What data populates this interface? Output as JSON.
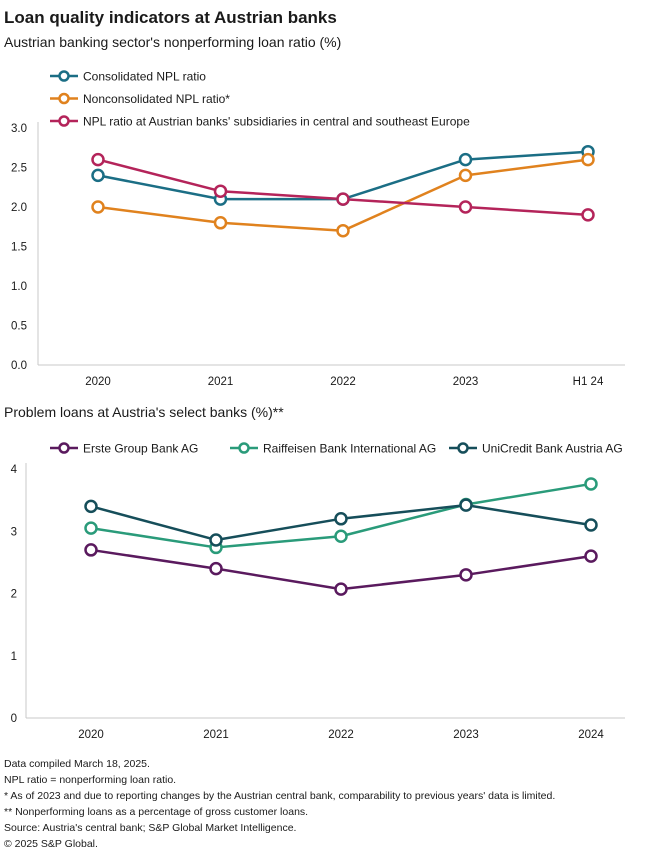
{
  "title": "Loan quality indicators at Austrian banks",
  "chart_data": [
    {
      "type": "line",
      "title": "Austrian banking sector's nonperforming loan ratio (%)",
      "categories": [
        "2020",
        "2021",
        "2022",
        "2023",
        "H1 24"
      ],
      "ylim": [
        0,
        3
      ],
      "yticks": [
        "0.0",
        "0.5",
        "1.0",
        "1.5",
        "2.0",
        "2.5",
        "3.0"
      ],
      "legend_position": "top-left",
      "grid": false,
      "series": [
        {
          "name": "Consolidated NPL ratio",
          "color": "#1b6e85",
          "values": [
            2.4,
            2.1,
            2.1,
            2.6,
            2.7
          ]
        },
        {
          "name": "Nonconsolidated NPL ratio*",
          "color": "#e0821e",
          "values": [
            2.0,
            1.8,
            1.7,
            2.4,
            2.6
          ]
        },
        {
          "name": "NPL ratio at Austrian banks' subsidiaries in central and southeast Europe",
          "color": "#b4245a",
          "values": [
            2.6,
            2.2,
            2.1,
            2.0,
            1.9
          ]
        }
      ]
    },
    {
      "type": "line",
      "title": "Problem loans at Austria's select banks (%)**",
      "categories": [
        "2020",
        "2021",
        "2022",
        "2023",
        "2024"
      ],
      "ylim": [
        0,
        4
      ],
      "yticks": [
        "0",
        "1",
        "2",
        "3",
        "4"
      ],
      "legend_position": "top",
      "grid": false,
      "series": [
        {
          "name": "Erste Group Bank AG",
          "color": "#5a1a5e",
          "values": [
            2.7,
            2.4,
            2.07,
            2.3,
            2.6
          ]
        },
        {
          "name": "Raiffeisen Bank International AG",
          "color": "#2a9b7a",
          "values": [
            3.05,
            2.74,
            2.92,
            3.43,
            3.76
          ]
        },
        {
          "name": "UniCredit Bank Austria AG",
          "color": "#164e5a",
          "values": [
            3.4,
            2.86,
            3.2,
            3.42,
            3.1
          ]
        }
      ]
    }
  ],
  "footnotes": [
    "Data compiled March 18, 2025.",
    "NPL ratio = nonperforming loan ratio.",
    "* As of 2023 and due to reporting changes by the Austrian central bank, comparability to previous years' data is limited.",
    "** Nonperforming loans as a percentage of gross customer loans.",
    "Source: Austria's central bank; S&P Global Market Intelligence.",
    "© 2025 S&P Global."
  ]
}
